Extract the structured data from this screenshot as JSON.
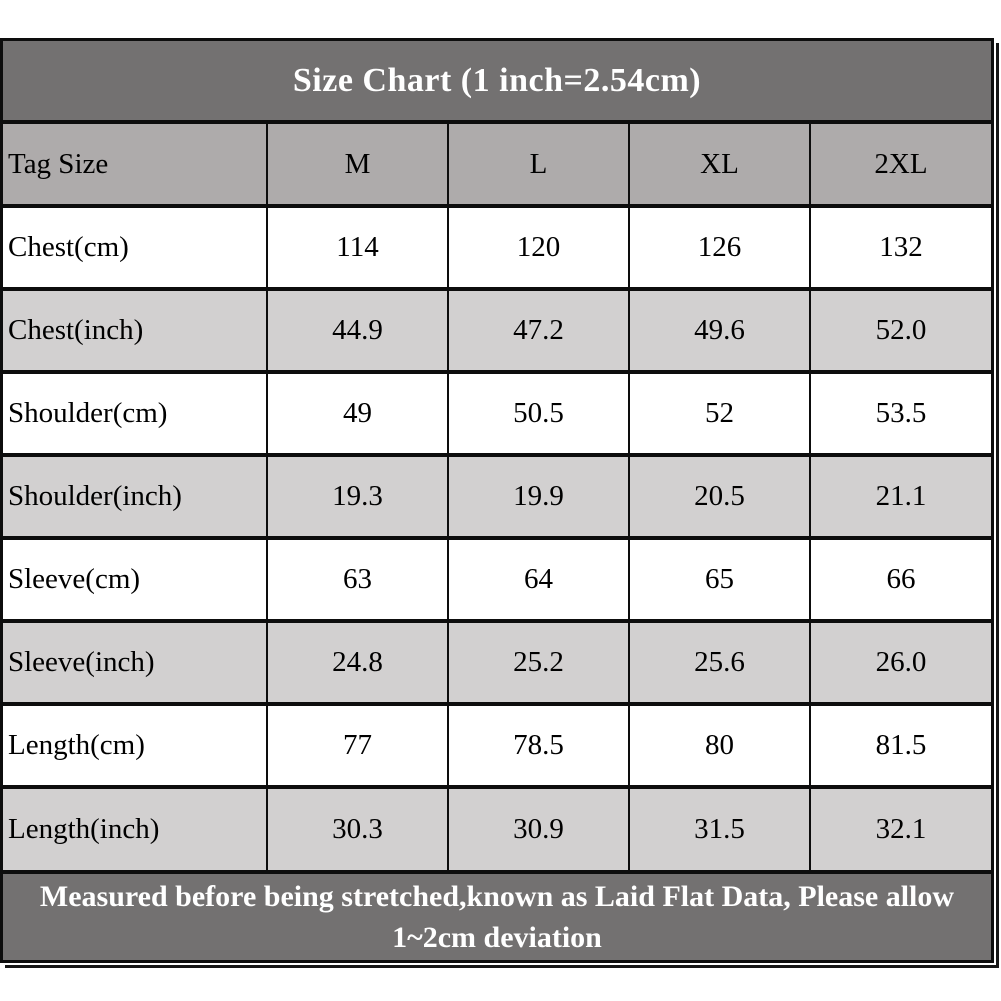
{
  "title": "Size Chart (1 inch=2.54cm)",
  "footer": "Measured before being stretched,known as Laid Flat Data, Please allow 1~2cm deviation",
  "colors": {
    "title_bg": "#737171",
    "footer_bg": "#737171",
    "header_row_bg": "#aeabab",
    "stripe_row_bg": "#d2d0d0",
    "white_row_bg": "#ffffff",
    "border": "#0d0d0d",
    "title_text": "#ffffff",
    "cell_text": "#000000"
  },
  "chart_data": {
    "type": "table",
    "title": "Size Chart (1 inch=2.54cm)",
    "columns": [
      "Tag Size",
      "M",
      "L",
      "XL",
      "2XL"
    ],
    "rows": [
      {
        "label": "Chest(cm)",
        "values": [
          "114",
          "120",
          "126",
          "132"
        ]
      },
      {
        "label": "Chest(inch)",
        "values": [
          "44.9",
          "47.2",
          "49.6",
          "52.0"
        ]
      },
      {
        "label": "Shoulder(cm)",
        "values": [
          "49",
          "50.5",
          "52",
          "53.5"
        ]
      },
      {
        "label": "Shoulder(inch)",
        "values": [
          "19.3",
          "19.9",
          "20.5",
          "21.1"
        ]
      },
      {
        "label": "Sleeve(cm)",
        "values": [
          "63",
          "64",
          "65",
          "66"
        ]
      },
      {
        "label": "Sleeve(inch)",
        "values": [
          "24.8",
          "25.2",
          "25.6",
          "26.0"
        ]
      },
      {
        "label": "Length(cm)",
        "values": [
          "77",
          "78.5",
          "80",
          "81.5"
        ]
      },
      {
        "label": "Length(inch)",
        "values": [
          "30.3",
          "30.9",
          "31.5",
          "32.1"
        ]
      }
    ],
    "note": "Measured before being stretched,known as Laid Flat Data, Please allow 1~2cm deviation"
  },
  "table": {
    "header": [
      "Tag Size",
      "M",
      "L",
      "XL",
      "2XL"
    ]
  }
}
